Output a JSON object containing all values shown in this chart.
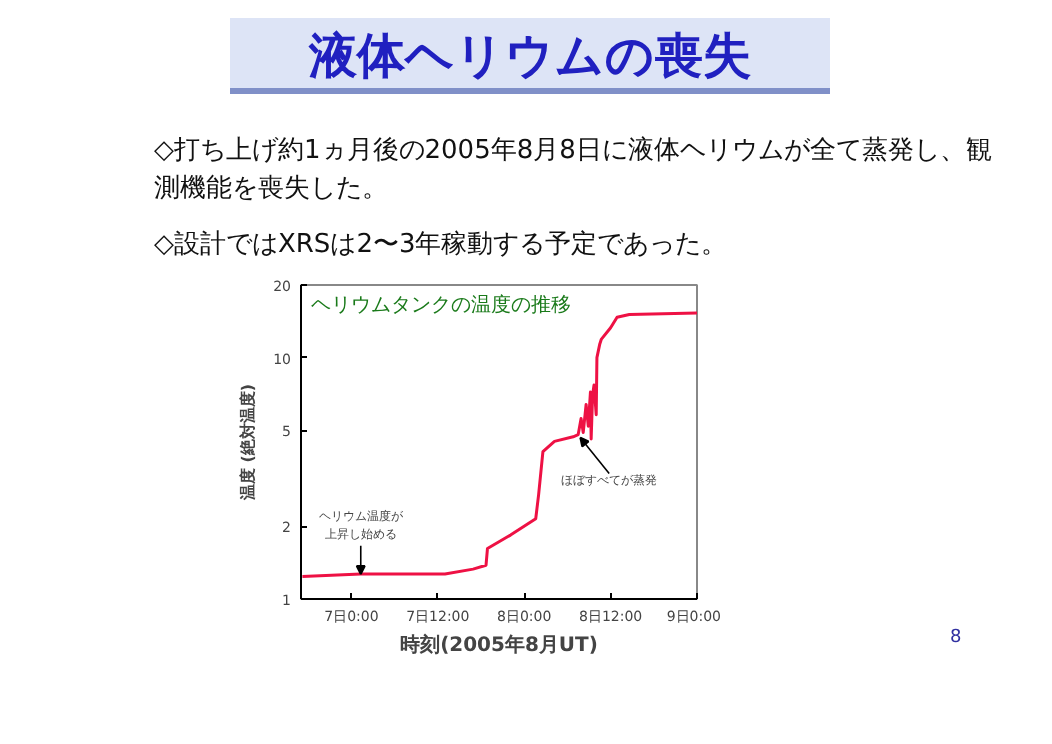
{
  "chart_data": {
    "type": "line",
    "title": "液体ヘリウムの喪失",
    "subtitle": "ヘリウムタンクの温度の推移",
    "xlabel": "時刻(2005年8月UT)",
    "ylabel": "温度 (絶対温度)",
    "annotations": [
      "◇打ち上げ約1ヵ月後の2005年8月8日に液体ヘリウムが全て蒸発し、観測機能を喪失した。",
      "◇設計ではXRSは2〜3年稼動する予定であった。",
      "8",
      {
        "text": "ヘリウム温度が上昇し始める",
        "x": "2005-08-07T01:18",
        "y": 1.27
      },
      {
        "text": "ほぼすべてが蒸発",
        "x": "2005-08-08T07:48",
        "y": 4.8
      }
    ],
    "x": [
      "2005-08-06T17:12",
      "2005-08-07T01:18",
      "2005-08-07T13:00",
      "2005-08-07T16:54",
      "2005-08-07T18:42",
      "2005-08-07T18:54",
      "2005-08-07T22:06",
      "2005-08-08T01:36",
      "2005-08-08T02:00",
      "2005-08-08T02:36",
      "2005-08-08T04:12",
      "2005-08-08T06:48",
      "2005-08-08T07:30",
      "2005-08-08T07:54",
      "2005-08-08T08:12",
      "2005-08-08T08:36",
      "2005-08-08T08:54",
      "2005-08-08T09:12",
      "2005-08-08T09:18",
      "2005-08-08T09:30",
      "2005-08-08T09:42",
      "2005-08-08T10:00",
      "2005-08-08T10:06",
      "2005-08-08T10:30",
      "2005-08-08T10:42",
      "2005-08-08T12:00",
      "2005-08-08T12:54",
      "2005-08-08T14:36",
      "2005-08-09T00:00"
    ],
    "series": [
      {
        "color": "#ee1144",
        "values": [
          1.24,
          1.27,
          1.27,
          1.33,
          1.38,
          1.62,
          1.84,
          2.15,
          2.7,
          4.08,
          4.5,
          4.7,
          4.8,
          5.6,
          4.9,
          6.4,
          5.2,
          7.2,
          4.6,
          7.0,
          7.7,
          5.8,
          10,
          11.4,
          11.9,
          13.3,
          14.7,
          15.1,
          15.3
        ]
      }
    ],
    "log": "y",
    "xlim": [
      "2005-08-06T17:00",
      "2005-08-09T00:00"
    ],
    "ylim": [
      1,
      20
    ],
    "xticks": [
      {
        "value": "2005-08-07T00:00",
        "label": "7日0:00"
      },
      {
        "value": "2005-08-07T12:00",
        "label": "7日12:00"
      },
      {
        "value": "2005-08-08T00:00",
        "label": "8日0:00"
      },
      {
        "value": "2005-08-08T12:00",
        "label": "8日12:00"
      },
      {
        "value": "2005-08-09T00:00",
        "label": "9日0:00"
      }
    ],
    "yticks": [
      1,
      2,
      5,
      10,
      20
    ],
    "grid": false,
    "marker": "none",
    "line_style": "solid"
  }
}
